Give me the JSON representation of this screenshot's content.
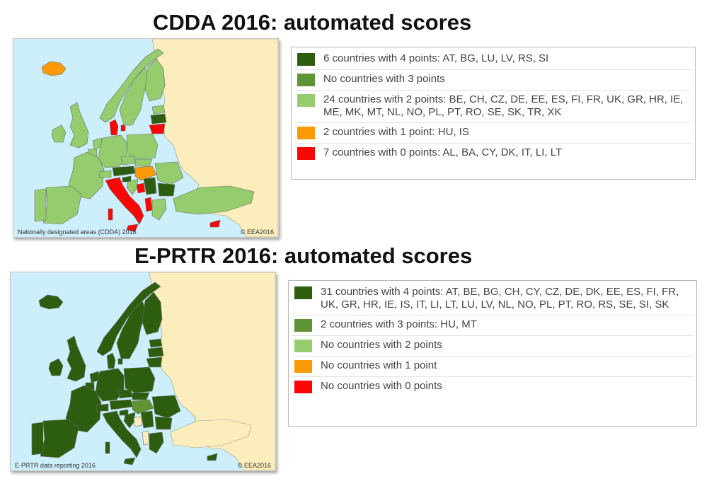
{
  "colors": {
    "sea": "#cdeefb",
    "outside": "#fbeebc",
    "border": "#6b6b6b",
    "score_4": "#2d5e0f",
    "score_3": "#5e9434",
    "score_2": "#95cc6e",
    "score_1": "#fb9a05",
    "score_0": "#fb0505"
  },
  "cdda": {
    "title": "CDDA 2016: automated scores",
    "map_caption": "Nationally designated areas (CDDA) 2016",
    "map_copyright": "© EEA2016",
    "legend": [
      {
        "color": "#2d5e0f",
        "icon": "dark-green-swatch",
        "text": "6 countries with 4 points: AT, BG, LU, LV, RS, SI"
      },
      {
        "color": "#5e9434",
        "icon": "medium-green-swatch",
        "text": "No countries with 3 points"
      },
      {
        "color": "#95cc6e",
        "icon": "light-green-swatch",
        "text": "24 countries with 2 points: BE, CH, CZ, DE, EE, ES, FI, FR, UK, GR, HR, IE, ME, MK, MT, NL, NO, PL, PT, RO, SE, SK, TR, XK"
      },
      {
        "color": "#fb9a05",
        "icon": "orange-swatch",
        "text": "2 countries with 1 point: HU, IS"
      },
      {
        "color": "#fb0505",
        "icon": "red-swatch",
        "text": "7 countries with 0 points: AL, BA, CY, DK, IT, LI, LT"
      }
    ]
  },
  "eprtr": {
    "title": "E-PRTR 2016: automated scores",
    "map_caption": "E-PRTR data reporting 2016",
    "map_copyright": "© EEA2016",
    "legend": [
      {
        "color": "#2d5e0f",
        "icon": "dark-green-swatch",
        "text": "31 countries with 4 points: AT, BE, BG, CH, CY, CZ, DE, DK, EE, ES, FI, FR, UK, GR, HR, IE, IS, IT, LI, LT, LU, LV, NL, NO, PL, PT, RO, RS, SE, SI, SK"
      },
      {
        "color": "#5e9434",
        "icon": "medium-green-swatch",
        "text": "2 countries with 3 points: HU, MT"
      },
      {
        "color": "#95cc6e",
        "icon": "light-green-swatch",
        "text": "No countries with 2 points"
      },
      {
        "color": "#fb9a05",
        "icon": "orange-swatch",
        "text": "No countries with 1 point"
      },
      {
        "color": "#fb0505",
        "icon": "red-swatch",
        "text": "No countries with 0 points"
      }
    ]
  }
}
